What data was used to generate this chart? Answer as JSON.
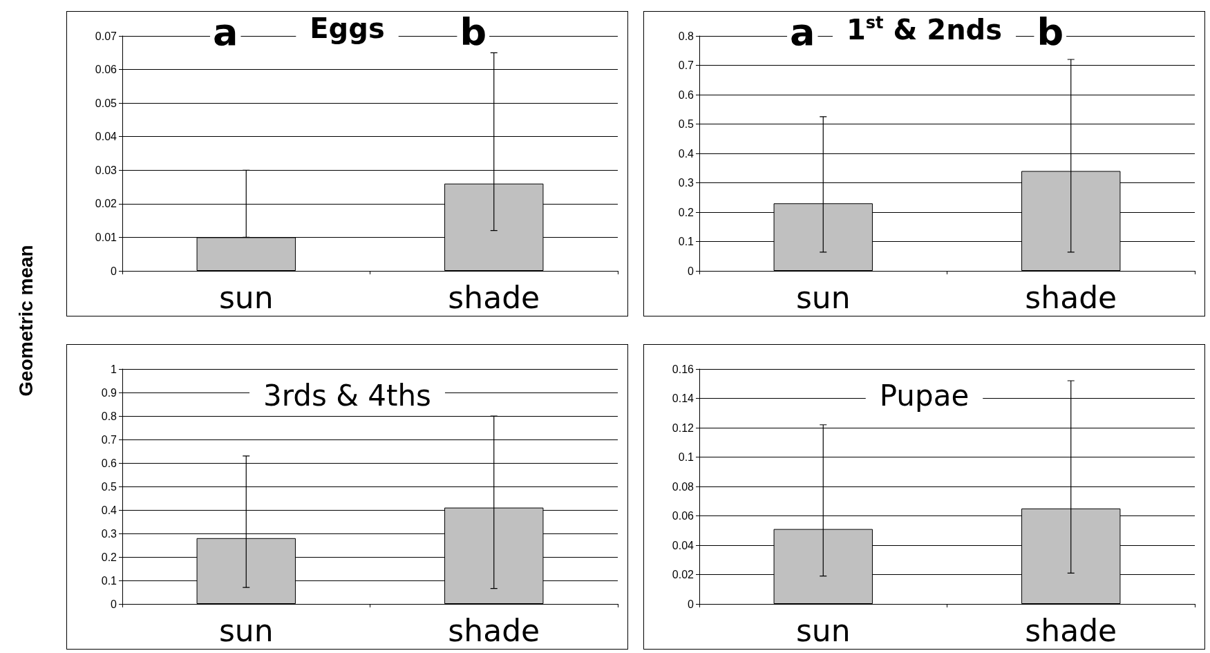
{
  "chart_data": [
    {
      "type": "bar",
      "title": "Eggs",
      "ylabel": "Geometric mean",
      "categories": [
        "sun",
        "shade"
      ],
      "color": "#c0c0c0",
      "values": [
        0.01,
        0.026
      ],
      "errors": [
        [
          0.01,
          0.03
        ],
        [
          0.012,
          0.065
        ]
      ],
      "ylim": [
        0,
        0.07
      ],
      "yticks": [
        0,
        0.01,
        0.02,
        0.03,
        0.04,
        0.05,
        0.06,
        0.07
      ],
      "grid": "y",
      "annotations": [
        "a",
        "b"
      ]
    },
    {
      "type": "bar",
      "title": "1$^{st}$ & 2nds",
      "categories": [
        "sun",
        "shade"
      ],
      "color": "#c0c0c0",
      "values": [
        0.23,
        0.34
      ],
      "errors": [
        [
          0.064,
          0.525
        ],
        [
          0.064,
          0.72
        ]
      ],
      "ylim": [
        0,
        0.8
      ],
      "yticks": [
        0,
        0.1,
        0.2,
        0.3,
        0.4,
        0.5,
        0.6,
        0.7,
        0.8
      ],
      "grid": "y",
      "annotations": [
        "a",
        "b"
      ]
    },
    {
      "type": "bar",
      "title": "3rds & 4ths",
      "categories": [
        "sun",
        "shade"
      ],
      "color": "#c0c0c0",
      "values": [
        0.28,
        0.41
      ],
      "errors": [
        [
          0.07,
          0.63
        ],
        [
          0.066,
          0.8
        ]
      ],
      "ylim": [
        0,
        1
      ],
      "yticks": [
        0,
        0.1,
        0.2,
        0.3,
        0.4,
        0.5,
        0.6,
        0.7,
        0.8,
        0.9,
        1
      ],
      "grid": "y"
    },
    {
      "type": "bar",
      "title": "Pupae",
      "categories": [
        "sun",
        "shade"
      ],
      "color": "#c0c0c0",
      "values": [
        0.051,
        0.065
      ],
      "errors": [
        [
          0.019,
          0.122
        ],
        [
          0.021,
          0.152
        ]
      ],
      "ylim": [
        0,
        0.16
      ],
      "yticks": [
        0,
        0.02,
        0.04,
        0.06,
        0.08,
        0.1,
        0.12,
        0.14,
        0.16
      ],
      "grid": "y"
    }
  ]
}
